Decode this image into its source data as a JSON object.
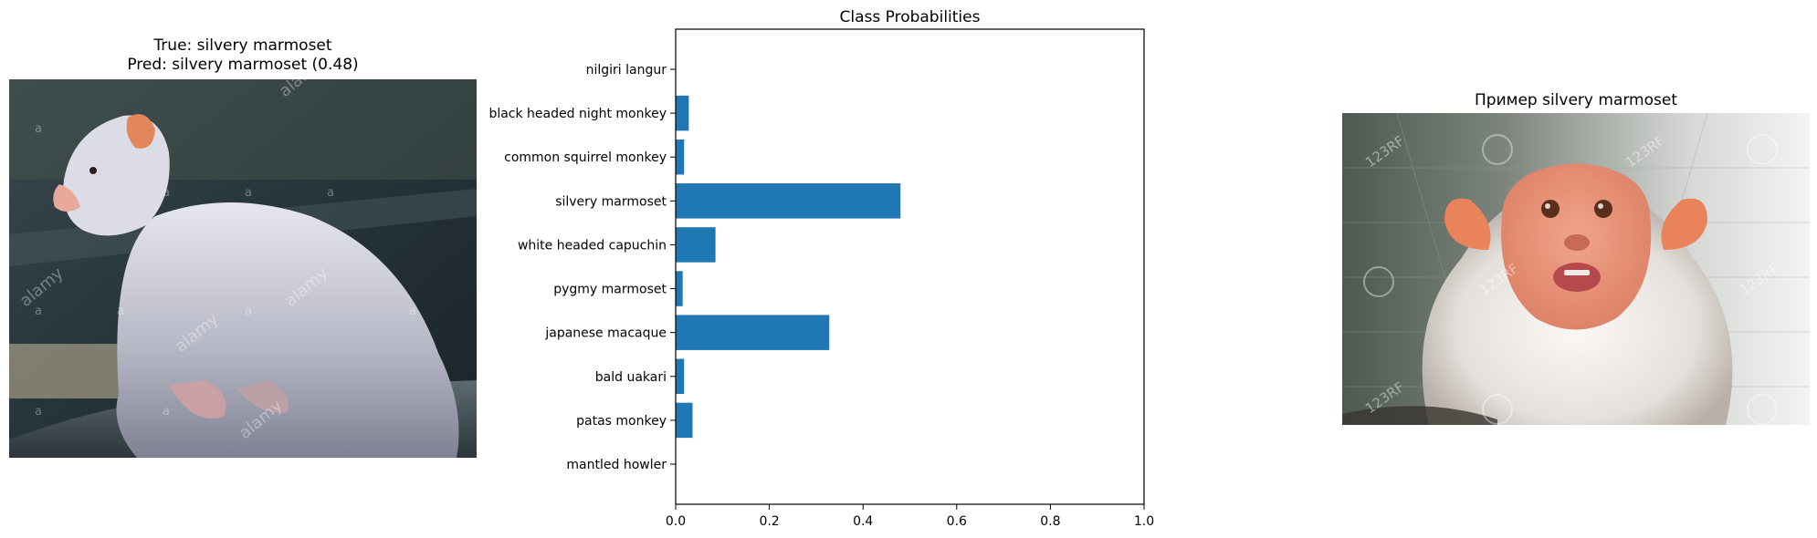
{
  "left_panel": {
    "title_line1": "True: silvery marmoset",
    "title_line2": "Pred: silvery marmoset (0.48)",
    "watermark": "alamy",
    "watermark_small": "a"
  },
  "right_panel": {
    "title": "Пример silvery marmoset",
    "watermark": "123RF"
  },
  "chart_data": {
    "type": "bar",
    "orientation": "horizontal",
    "title": "Class Probabilities",
    "xlabel": "",
    "ylabel": "",
    "categories": [
      "nilgiri langur",
      "black headed night monkey",
      "common squirrel monkey",
      "silvery marmoset",
      "white headed capuchin",
      "pygmy marmoset",
      "japanese macaque",
      "bald uakari",
      "patas monkey",
      "mantled howler"
    ],
    "values": [
      0.0,
      0.028,
      0.018,
      0.48,
      0.085,
      0.015,
      0.328,
      0.018,
      0.036,
      0.0
    ],
    "xlim": [
      0,
      1.0
    ],
    "xticks": [
      "0.0",
      "0.2",
      "0.4",
      "0.6",
      "0.8",
      "1.0"
    ],
    "bar_color": "#1f77b4",
    "grid": false
  }
}
